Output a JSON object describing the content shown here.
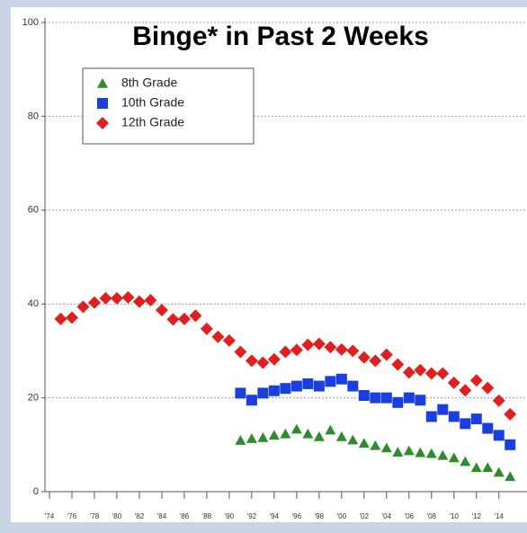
{
  "chart_data": {
    "type": "scatter",
    "title": "Binge* in Past 2 Weeks",
    "x": [
      1975,
      1976,
      1977,
      1978,
      1979,
      1980,
      1981,
      1982,
      1983,
      1984,
      1985,
      1986,
      1987,
      1988,
      1989,
      1990,
      1991,
      1992,
      1993,
      1994,
      1995,
      1996,
      1997,
      1998,
      1999,
      2000,
      2001,
      2002,
      2003,
      2004,
      2005,
      2006,
      2007,
      2008,
      2009,
      2010,
      2011,
      2012,
      2013,
      2014,
      2015
    ],
    "series": [
      {
        "name": "8th Grade",
        "color": "#2e8b2e",
        "marker": "triangle",
        "values": [
          null,
          null,
          null,
          null,
          null,
          null,
          null,
          null,
          null,
          null,
          null,
          null,
          null,
          null,
          null,
          null,
          10.9,
          11.3,
          11.5,
          12,
          12.3,
          13.3,
          12.3,
          11.7,
          13.1,
          11.7,
          11,
          10.3,
          9.8,
          9.3,
          8.4,
          8.7,
          8.3,
          8.1,
          7.7,
          7.2,
          6.4,
          5.1,
          5.1,
          4.1,
          3.2
        ]
      },
      {
        "name": "10th Grade",
        "color": "#1a3fe0",
        "marker": "square",
        "values": [
          null,
          null,
          null,
          null,
          null,
          null,
          null,
          null,
          null,
          null,
          null,
          null,
          null,
          null,
          null,
          null,
          21,
          19.5,
          21,
          21.5,
          22,
          22.5,
          23,
          22.5,
          23.5,
          24,
          22.5,
          20.5,
          20,
          20,
          19,
          20,
          19.5,
          16,
          17.5,
          16,
          14.5,
          15.5,
          13.5,
          12,
          10
        ]
      },
      {
        "name": "12th Grade",
        "color": "#e0201e",
        "marker": "diamond",
        "values": [
          36.8,
          37.1,
          39.4,
          40.3,
          41.2,
          41.2,
          41.4,
          40.5,
          40.8,
          38.7,
          36.7,
          36.8,
          37.5,
          34.7,
          33,
          32.2,
          29.8,
          27.9,
          27.5,
          28.2,
          29.8,
          30.2,
          31.3,
          31.5,
          30.8,
          30.3,
          30,
          28.6,
          27.9,
          29.2,
          27.1,
          25.4,
          25.9,
          25.2,
          25.2,
          23.2,
          21.6,
          23.7,
          22.1,
          19.4,
          16.5
        ]
      }
    ],
    "xlim": [
      1973.6,
      2016.5
    ],
    "xticks": [
      {
        "value": 1974,
        "label": "'74"
      },
      {
        "value": 1976,
        "label": "'76"
      },
      {
        "value": 1978,
        "label": "'78"
      },
      {
        "value": 1980,
        "label": "'80"
      },
      {
        "value": 1982,
        "label": "'82"
      },
      {
        "value": 1984,
        "label": "'84"
      },
      {
        "value": 1986,
        "label": "'86"
      },
      {
        "value": 1988,
        "label": "'88"
      },
      {
        "value": 1990,
        "label": "'90"
      },
      {
        "value": 1992,
        "label": "'92"
      },
      {
        "value": 1994,
        "label": "'94"
      },
      {
        "value": 1996,
        "label": "'96"
      },
      {
        "value": 1998,
        "label": "'98"
      },
      {
        "value": 2000,
        "label": "'00"
      },
      {
        "value": 2002,
        "label": "'02"
      },
      {
        "value": 2004,
        "label": "'04"
      },
      {
        "value": 2006,
        "label": "'06"
      },
      {
        "value": 2008,
        "label": "'08"
      },
      {
        "value": 2010,
        "label": "'10"
      },
      {
        "value": 2012,
        "label": "'12"
      },
      {
        "value": 2014,
        "label": "'14"
      }
    ],
    "ylim": [
      0,
      100
    ],
    "yticks": [
      0,
      20,
      40,
      60,
      80,
      100
    ],
    "grid": true,
    "legend": "upper left"
  }
}
